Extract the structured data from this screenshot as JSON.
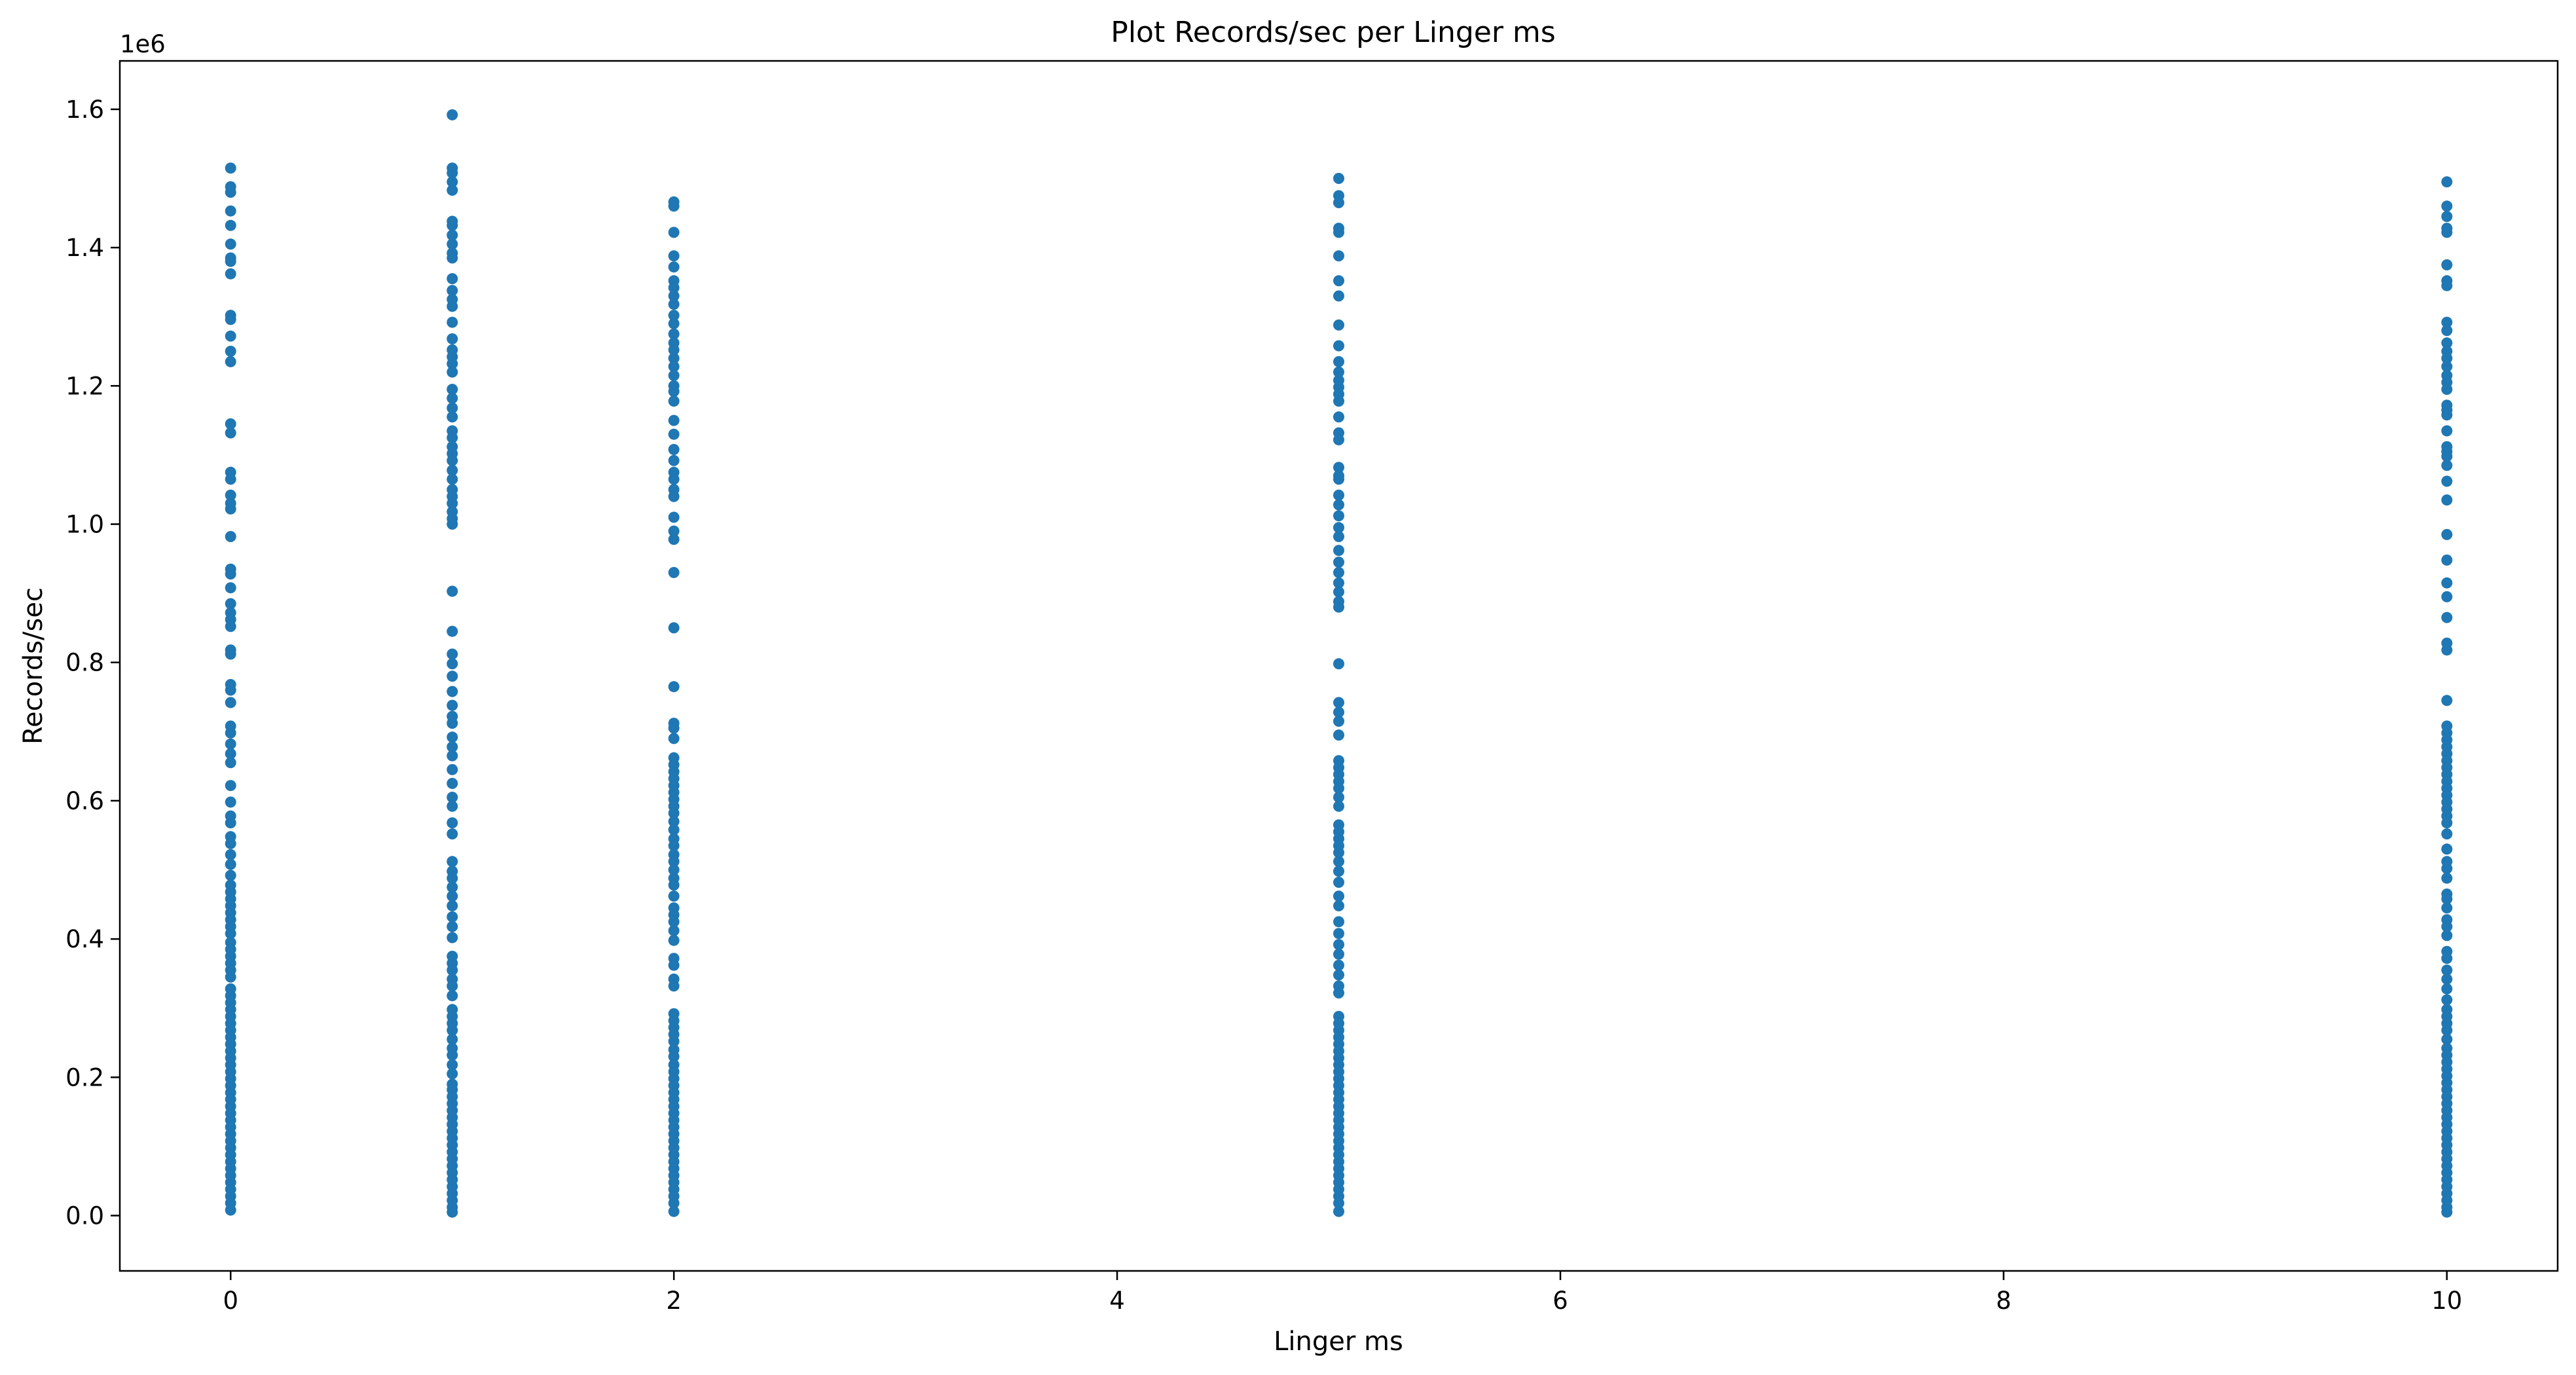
{
  "chart_data": {
    "type": "scatter",
    "title": "Plot Records/sec per Linger ms",
    "xlabel": "Linger ms",
    "ylabel": "Records/sec",
    "xlim": [
      -0.5,
      10.5
    ],
    "ylim": [
      -80000,
      1670000
    ],
    "x_ticks": [
      0,
      2,
      4,
      6,
      8,
      10
    ],
    "x_tick_labels": [
      "0",
      "2",
      "4",
      "6",
      "8",
      "10"
    ],
    "y_ticks": [
      0,
      200000,
      400000,
      600000,
      800000,
      1000000,
      1200000,
      1400000,
      1600000
    ],
    "y_tick_labels": [
      "0.0",
      "0.2",
      "0.4",
      "0.6",
      "0.8",
      "1.0",
      "1.2",
      "1.4",
      "1.6"
    ],
    "y_offset_label": "1e6",
    "grid": false,
    "marker_color": "#1f77b4",
    "series": [
      {
        "x": 0,
        "values": [
          1515000,
          1488000,
          1480000,
          1453000,
          1432000,
          1405000,
          1385000,
          1380000,
          1362000,
          1302000,
          1296000,
          1272000,
          1250000,
          1235000,
          1145000,
          1132000,
          1075000,
          1065000,
          1042000,
          1030000,
          1022000,
          982000,
          935000,
          928000,
          908000,
          885000,
          872000,
          862000,
          852000,
          818000,
          812000,
          768000,
          760000,
          742000,
          708000,
          698000,
          682000,
          668000,
          655000,
          622000,
          598000,
          578000,
          568000,
          548000,
          538000,
          522000,
          508000,
          492000,
          478000,
          468000,
          458000,
          448000,
          438000,
          428000,
          418000,
          408000,
          395000,
          385000,
          375000,
          365000,
          355000,
          345000,
          328000,
          318000,
          308000,
          298000,
          288000,
          278000,
          268000,
          258000,
          248000,
          238000,
          228000,
          218000,
          208000,
          198000,
          188000,
          178000,
          168000,
          158000,
          148000,
          138000,
          128000,
          118000,
          108000,
          98000,
          88000,
          78000,
          68000,
          58000,
          48000,
          38000,
          28000,
          18000,
          8000
        ]
      },
      {
        "x": 1,
        "values": [
          1592000,
          1515000,
          1508000,
          1495000,
          1483000,
          1438000,
          1432000,
          1418000,
          1405000,
          1392000,
          1385000,
          1355000,
          1338000,
          1325000,
          1315000,
          1292000,
          1268000,
          1252000,
          1242000,
          1232000,
          1220000,
          1195000,
          1182000,
          1168000,
          1155000,
          1135000,
          1125000,
          1112000,
          1102000,
          1092000,
          1078000,
          1065000,
          1050000,
          1040000,
          1030000,
          1018000,
          1008000,
          1000000,
          903000,
          845000,
          812000,
          798000,
          780000,
          758000,
          738000,
          722000,
          712000,
          692000,
          678000,
          665000,
          645000,
          625000,
          605000,
          592000,
          568000,
          552000,
          512000,
          498000,
          488000,
          475000,
          462000,
          448000,
          432000,
          418000,
          402000,
          375000,
          365000,
          355000,
          342000,
          332000,
          318000,
          298000,
          288000,
          278000,
          268000,
          255000,
          242000,
          232000,
          218000,
          205000,
          190000,
          182000,
          172000,
          162000,
          152000,
          142000,
          132000,
          122000,
          112000,
          102000,
          92000,
          82000,
          72000,
          62000,
          52000,
          42000,
          32000,
          22000,
          12000,
          5000
        ]
      },
      {
        "x": 2,
        "values": [
          1466000,
          1460000,
          1422000,
          1388000,
          1372000,
          1352000,
          1342000,
          1330000,
          1318000,
          1302000,
          1290000,
          1275000,
          1262000,
          1252000,
          1240000,
          1228000,
          1215000,
          1200000,
          1192000,
          1178000,
          1150000,
          1130000,
          1108000,
          1092000,
          1075000,
          1065000,
          1050000,
          1040000,
          1010000,
          990000,
          978000,
          930000,
          850000,
          765000,
          712000,
          705000,
          690000,
          662000,
          652000,
          642000,
          632000,
          622000,
          612000,
          602000,
          592000,
          582000,
          570000,
          558000,
          545000,
          535000,
          522000,
          512000,
          500000,
          488000,
          478000,
          462000,
          445000,
          435000,
          425000,
          412000,
          398000,
          372000,
          362000,
          342000,
          332000,
          292000,
          282000,
          272000,
          262000,
          252000,
          240000,
          230000,
          218000,
          208000,
          198000,
          188000,
          178000,
          168000,
          158000,
          148000,
          138000,
          128000,
          118000,
          108000,
          98000,
          88000,
          78000,
          68000,
          58000,
          48000,
          38000,
          28000,
          18000,
          6000
        ]
      },
      {
        "x": 5,
        "values": [
          1500000,
          1475000,
          1465000,
          1428000,
          1422000,
          1388000,
          1352000,
          1330000,
          1288000,
          1258000,
          1235000,
          1220000,
          1208000,
          1198000,
          1188000,
          1178000,
          1155000,
          1132000,
          1122000,
          1082000,
          1070000,
          1065000,
          1042000,
          1028000,
          1012000,
          995000,
          982000,
          962000,
          945000,
          930000,
          915000,
          902000,
          888000,
          880000,
          798000,
          742000,
          728000,
          715000,
          695000,
          658000,
          648000,
          638000,
          628000,
          618000,
          605000,
          592000,
          565000,
          555000,
          545000,
          535000,
          525000,
          512000,
          498000,
          482000,
          462000,
          448000,
          425000,
          408000,
          392000,
          378000,
          362000,
          348000,
          332000,
          322000,
          288000,
          278000,
          268000,
          258000,
          248000,
          238000,
          228000,
          218000,
          208000,
          198000,
          188000,
          178000,
          168000,
          158000,
          148000,
          138000,
          128000,
          118000,
          108000,
          98000,
          88000,
          78000,
          68000,
          58000,
          48000,
          38000,
          28000,
          18000,
          6000
        ]
      },
      {
        "x": 10,
        "values": [
          1495000,
          1460000,
          1445000,
          1428000,
          1422000,
          1375000,
          1352000,
          1345000,
          1292000,
          1280000,
          1262000,
          1250000,
          1240000,
          1228000,
          1215000,
          1205000,
          1195000,
          1172000,
          1165000,
          1158000,
          1135000,
          1112000,
          1105000,
          1098000,
          1085000,
          1062000,
          1035000,
          985000,
          948000,
          915000,
          895000,
          865000,
          828000,
          818000,
          745000,
          708000,
          698000,
          688000,
          678000,
          668000,
          658000,
          648000,
          638000,
          628000,
          618000,
          608000,
          598000,
          588000,
          578000,
          568000,
          552000,
          530000,
          512000,
          502000,
          488000,
          465000,
          458000,
          445000,
          428000,
          418000,
          405000,
          382000,
          372000,
          355000,
          342000,
          328000,
          312000,
          298000,
          288000,
          278000,
          268000,
          255000,
          242000,
          232000,
          222000,
          212000,
          202000,
          192000,
          182000,
          172000,
          162000,
          152000,
          142000,
          132000,
          122000,
          112000,
          102000,
          92000,
          82000,
          72000,
          62000,
          52000,
          42000,
          32000,
          22000,
          12000,
          5000
        ]
      }
    ]
  }
}
